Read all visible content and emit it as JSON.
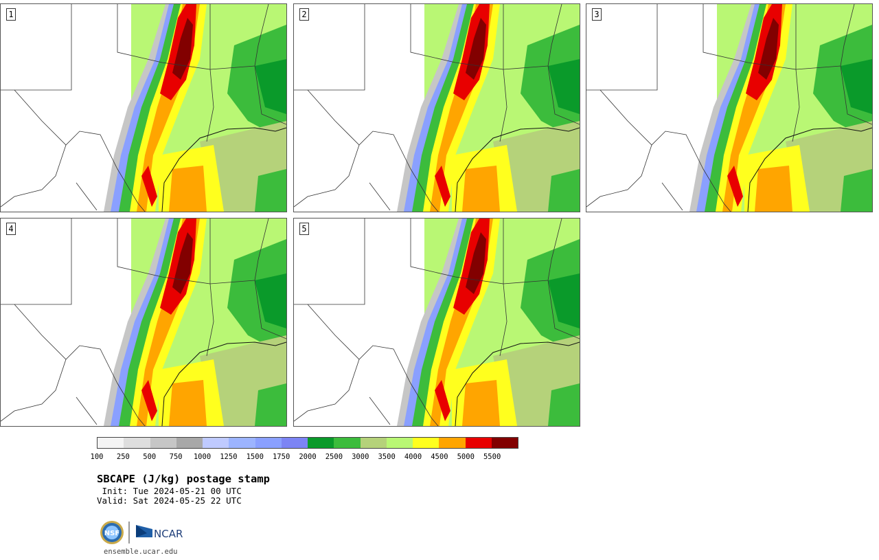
{
  "panels": [
    {
      "label": "1"
    },
    {
      "label": "2"
    },
    {
      "label": "3"
    },
    {
      "label": "4"
    },
    {
      "label": "5"
    }
  ],
  "colorbar": {
    "ticks": [
      "100",
      "250",
      "500",
      "750",
      "1000",
      "1250",
      "1500",
      "1750",
      "2000",
      "2500",
      "3000",
      "3500",
      "4000",
      "4500",
      "5000",
      "5500"
    ],
    "colors": [
      "#f4f4f4",
      "#dedede",
      "#c6c6c6",
      "#a8a8a8",
      "#bfcaff",
      "#9cb4ff",
      "#8aa0ff",
      "#7c84f4",
      "#0a9a2a",
      "#3cbc3c",
      "#b5d27a",
      "#b9f774",
      "#ffff1e",
      "#ffa500",
      "#e80000",
      "#820000"
    ]
  },
  "title": "SBCAPE (J/kg) postage stamp",
  "init": " Init: Tue 2024-05-21 00 UTC",
  "valid": "Valid: Sat 2024-05-25 22 UTC",
  "logos": {
    "nsf": "NSF",
    "ncar": "NCAR"
  },
  "footer_url": "ensemble.ucar.edu"
}
